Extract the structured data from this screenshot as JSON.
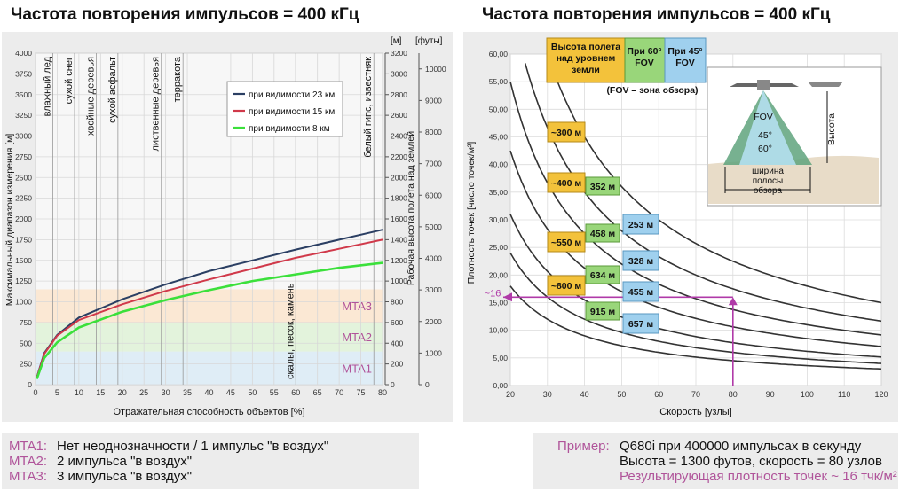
{
  "left_title": "Частота повторения импульсов = 400 кГц",
  "right_title": "Частота повторения импульсов = 400 кГц",
  "colors": {
    "dark": "#2b3f63",
    "red": "#d0394a",
    "green": "#3be03b",
    "mta": "#b0549a",
    "arrow": "#b03aa8"
  },
  "chart_data": [
    {
      "type": "line",
      "xlabel": "Отражательная способность объектов [%]",
      "ylabel": "Максимальный диапазон измерения [м]",
      "y2label": "Рабочая высота полета над землей",
      "y2unit": "[м]",
      "y3unit": "[футы]",
      "xlim": [
        0,
        80
      ],
      "ylim": [
        0,
        4000
      ],
      "xticks": [
        "0",
        "5",
        "10",
        "15",
        "20",
        "25",
        "30",
        "35",
        "40",
        "45",
        "50",
        "55",
        "60",
        "65",
        "70",
        "75",
        "80"
      ],
      "yticks": [
        "0",
        "250",
        "500",
        "750",
        "1000",
        "1250",
        "1500",
        "1750",
        "2000",
        "2250",
        "2500",
        "2750",
        "3000",
        "3250",
        "3500",
        "3750",
        "4000"
      ],
      "y2ticks": [
        "0",
        "200",
        "400",
        "600",
        "800",
        "1000",
        "1200",
        "1400",
        "1600",
        "1800",
        "2000",
        "2200",
        "2400",
        "2600",
        "2800",
        "3000",
        "3200"
      ],
      "y3ticks": [
        "0",
        "1000",
        "2000",
        "3000",
        "4000",
        "5000",
        "6000",
        "7000",
        "8000",
        "9000",
        "10000"
      ],
      "x": [
        0.3,
        2,
        5,
        10,
        20,
        30,
        40,
        50,
        60,
        70,
        80
      ],
      "series": [
        {
          "name": "при видимости 23 км",
          "values": [
            90,
            380,
            600,
            810,
            1030,
            1210,
            1370,
            1500,
            1630,
            1750,
            1870
          ]
        },
        {
          "name": "при видимости 15 км",
          "values": [
            85,
            370,
            590,
            780,
            970,
            1130,
            1270,
            1400,
            1530,
            1640,
            1750
          ]
        },
        {
          "name": "при видимости 8 км",
          "values": [
            70,
            320,
            510,
            690,
            880,
            1020,
            1140,
            1250,
            1330,
            1410,
            1470
          ]
        }
      ],
      "bands": [
        {
          "label": "MTA1",
          "from": 0,
          "to": 400
        },
        {
          "label": "MTA2",
          "from": 400,
          "to": 750
        },
        {
          "label": "MTA3",
          "from": 750,
          "to": 1150
        }
      ],
      "materials": [
        {
          "label": "влажный лед",
          "x": 4
        },
        {
          "label": "сухой снег",
          "x": 9
        },
        {
          "label": "хвойные деревья",
          "x": 14
        },
        {
          "label": "сухой асфальт",
          "x": 19
        },
        {
          "label": "лиственные деревья",
          "x": 29
        },
        {
          "label": "терракота",
          "x": 34
        },
        {
          "label": "скалы, песок, камень",
          "x": 60
        },
        {
          "label": "белый гипс, известняк",
          "x": 78
        }
      ]
    },
    {
      "type": "line",
      "xlabel": "Скорость [узлы]",
      "ylabel": "Плотность точек [число точек/м²]",
      "xlim": [
        20,
        120
      ],
      "ylim": [
        0,
        60
      ],
      "xticks": [
        "20",
        "30",
        "40",
        "50",
        "60",
        "70",
        "80",
        "90",
        "100",
        "110",
        "120"
      ],
      "yticks": [
        "0,00",
        "5,00",
        "10,00",
        "15,00",
        "20,00",
        "25,00",
        "30,00",
        "35,00",
        "40,00",
        "45,00",
        "50,00",
        "55,00",
        "60,00"
      ],
      "curves_k": [
        1800,
        1400,
        1100,
        850,
        620,
        480,
        360
      ],
      "table_headers": [
        "Высота полета над уровнем земли",
        "При 60° FOV",
        "При 45° FOV"
      ],
      "fov_note": "(FOV – зона обзора)",
      "rows": [
        {
          "altitude": "~300 м",
          "fov60": "",
          "fov45": ""
        },
        {
          "altitude": "~400 м",
          "fov60": "352 м",
          "fov45": ""
        },
        {
          "altitude": "~550 м",
          "fov60": "458 м",
          "fov45": "253 м"
        },
        {
          "altitude": "~800 м",
          "fov60": "634 м",
          "fov45": "328 м"
        },
        {
          "altitude": "",
          "fov60": "915 м",
          "fov45": "455 м"
        },
        {
          "altitude": "",
          "fov60": "",
          "fov45": "657 м"
        }
      ],
      "marker_x": 80,
      "marker_y": 16,
      "marker_label": "~16",
      "diagram_labels": {
        "fov": "FOV",
        "a45": "45°",
        "a60": "60°",
        "height": "Высота",
        "swath": "ширина полосы обзора"
      }
    }
  ],
  "legend_left": [
    {
      "code": "MTA1:",
      "text": "Нет неоднозначности / 1 импульс \"в воздух\""
    },
    {
      "code": "MTA2:",
      "text": "2 импульса \"в воздух\""
    },
    {
      "code": "MTA3:",
      "text": "3 импульса \"в воздух\""
    }
  ],
  "example": {
    "label": "Пример:",
    "line1": "Q680i при 400000 импульсах в секунду",
    "line2": "Высота = 1300 футов, скорость = 80 узлов",
    "line3": "Результирующая плотность точек ~ 16 тчк/м²"
  }
}
